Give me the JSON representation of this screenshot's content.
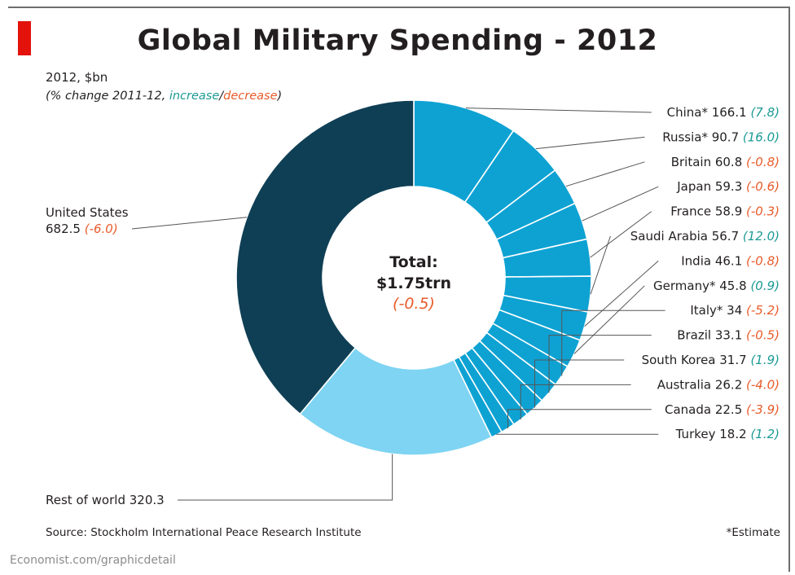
{
  "title": "Global Military Spending - 2012",
  "subtitle": "2012, $bn",
  "note": {
    "prefix": "(% change 2011-12, ",
    "increase": "increase",
    "slash": "/",
    "decrease": "decrease",
    "suffix": ")"
  },
  "center": {
    "label": "Total:",
    "value": "$1.75trn",
    "change": "(-0.5)"
  },
  "source": "Source: Stockholm International Peace Research Institute",
  "footnote": "*Estimate",
  "credit": "Economist.com/graphicdetail",
  "colors": {
    "dark": "#0f3f55",
    "mid": "#0ea2d3",
    "light": "#7ed4f2",
    "increase": "#1b9a94",
    "decrease": "#e85c2b",
    "accent": "#e3120b"
  },
  "chart_data": {
    "type": "pie",
    "variant": "donut",
    "unit": "$bn",
    "title": "Global Military Spending - 2012",
    "total": "$1.75trn",
    "total_change": -0.5,
    "slices": [
      {
        "label": "China*",
        "value": 166.1,
        "change": 7.8,
        "change_text": "(7.8)"
      },
      {
        "label": "Russia*",
        "value": 90.7,
        "change": 16.0,
        "change_text": "(16.0)"
      },
      {
        "label": "Britain",
        "value": 60.8,
        "change": -0.8,
        "change_text": "(-0.8)"
      },
      {
        "label": "Japan",
        "value": 59.3,
        "change": -0.6,
        "change_text": "(-0.6)"
      },
      {
        "label": "France",
        "value": 58.9,
        "change": -0.3,
        "change_text": "(-0.3)"
      },
      {
        "label": "Saudi Arabia",
        "value": 56.7,
        "change": 12.0,
        "change_text": "(12.0)"
      },
      {
        "label": "India",
        "value": 46.1,
        "change": -0.8,
        "change_text": "(-0.8)"
      },
      {
        "label": "Germany*",
        "value": 45.8,
        "change": 0.9,
        "change_text": "(0.9)"
      },
      {
        "label": "Italy*",
        "value": 34.0,
        "change": -5.2,
        "change_text": "(-5.2)"
      },
      {
        "label": "Brazil",
        "value": 33.1,
        "change": -0.5,
        "change_text": "(-0.5)"
      },
      {
        "label": "South Korea",
        "value": 31.7,
        "change": 1.9,
        "change_text": "(1.9)"
      },
      {
        "label": "Australia",
        "value": 26.2,
        "change": -4.0,
        "change_text": "(-4.0)"
      },
      {
        "label": "Canada",
        "value": 22.5,
        "change": -3.9,
        "change_text": "(-3.9)"
      },
      {
        "label": "Turkey",
        "value": 18.2,
        "change": 1.2,
        "change_text": "(1.2)"
      },
      {
        "label": "Rest of world",
        "value": 320.3,
        "change": null,
        "change_text": ""
      },
      {
        "label": "United States",
        "value": 682.5,
        "change": -6.0,
        "change_text": "(-6.0)"
      }
    ]
  }
}
